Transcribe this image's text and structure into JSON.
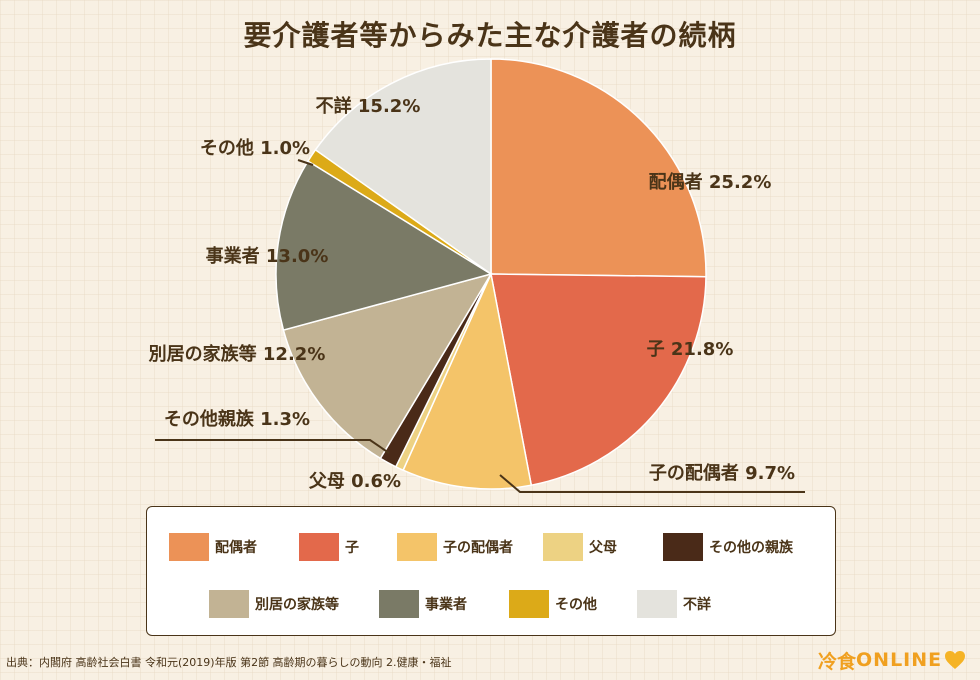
{
  "chart_data": {
    "type": "pie",
    "title": "要介護者等からみた主な介護者の続柄",
    "slices": [
      {
        "name": "配偶者",
        "value": 25.2,
        "label": "配偶者 25.2%",
        "color": "#ec9257"
      },
      {
        "name": "子",
        "value": 21.8,
        "label": "子 21.8%",
        "color": "#e3694b"
      },
      {
        "name": "子の配偶者",
        "value": 9.7,
        "label": "子の配偶者 9.7%",
        "color": "#f4c469"
      },
      {
        "name": "父母",
        "value": 0.6,
        "label": "父母 0.6%",
        "color": "#edd283"
      },
      {
        "name": "その他の親族",
        "value": 1.3,
        "label": "その他親族 1.3%",
        "color": "#4a2a18"
      },
      {
        "name": "別居の家族等",
        "value": 12.2,
        "label": "別居の家族等 12.2%",
        "color": "#c2b394"
      },
      {
        "name": "事業者",
        "value": 13.0,
        "label": "事業者 13.0%",
        "color": "#7a7a66"
      },
      {
        "name": "その他",
        "value": 1.0,
        "label": "その他 1.0%",
        "color": "#dcaa18"
      },
      {
        "name": "不詳",
        "value": 15.2,
        "label": "不詳 15.2%",
        "color": "#e4e3dd"
      }
    ],
    "legend_position": "bottom"
  },
  "source": "出典：内閣府 高齢社会白書 令和元(2019)年版 第2節 高齢期の暮らしの動向 2.健康・福祉",
  "logo": {
    "text_a": "冷食",
    "text_b": "ONLINE"
  }
}
